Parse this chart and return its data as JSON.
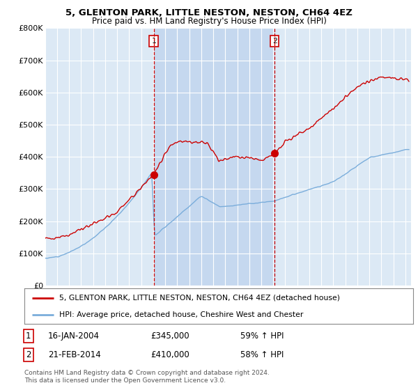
{
  "title": "5, GLENTON PARK, LITTLE NESTON, NESTON, CH64 4EZ",
  "subtitle": "Price paid vs. HM Land Registry's House Price Index (HPI)",
  "ylim": [
    0,
    800000
  ],
  "yticks": [
    0,
    100000,
    200000,
    300000,
    400000,
    500000,
    600000,
    700000,
    800000
  ],
  "ytick_labels": [
    "£0",
    "£100K",
    "£200K",
    "£300K",
    "£400K",
    "£500K",
    "£600K",
    "£700K",
    "£800K"
  ],
  "xlim_start": 1995.0,
  "xlim_end": 2025.5,
  "plot_bg": "#dce9f5",
  "shade_color": "#c5d8ef",
  "red_color": "#cc0000",
  "blue_color": "#7aaddb",
  "vline_color": "#cc0000",
  "marker1_year": 2004.04,
  "marker2_year": 2014.12,
  "marker1_price": 345000,
  "marker2_price": 410000,
  "legend_line1": "5, GLENTON PARK, LITTLE NESTON, NESTON, CH64 4EZ (detached house)",
  "legend_line2": "HPI: Average price, detached house, Cheshire West and Chester",
  "table_row1": [
    "1",
    "16-JAN-2004",
    "£345,000",
    "59% ↑ HPI"
  ],
  "table_row2": [
    "2",
    "21-FEB-2014",
    "£410,000",
    "58% ↑ HPI"
  ],
  "footnote1": "Contains HM Land Registry data © Crown copyright and database right 2024.",
  "footnote2": "This data is licensed under the Open Government Licence v3.0."
}
